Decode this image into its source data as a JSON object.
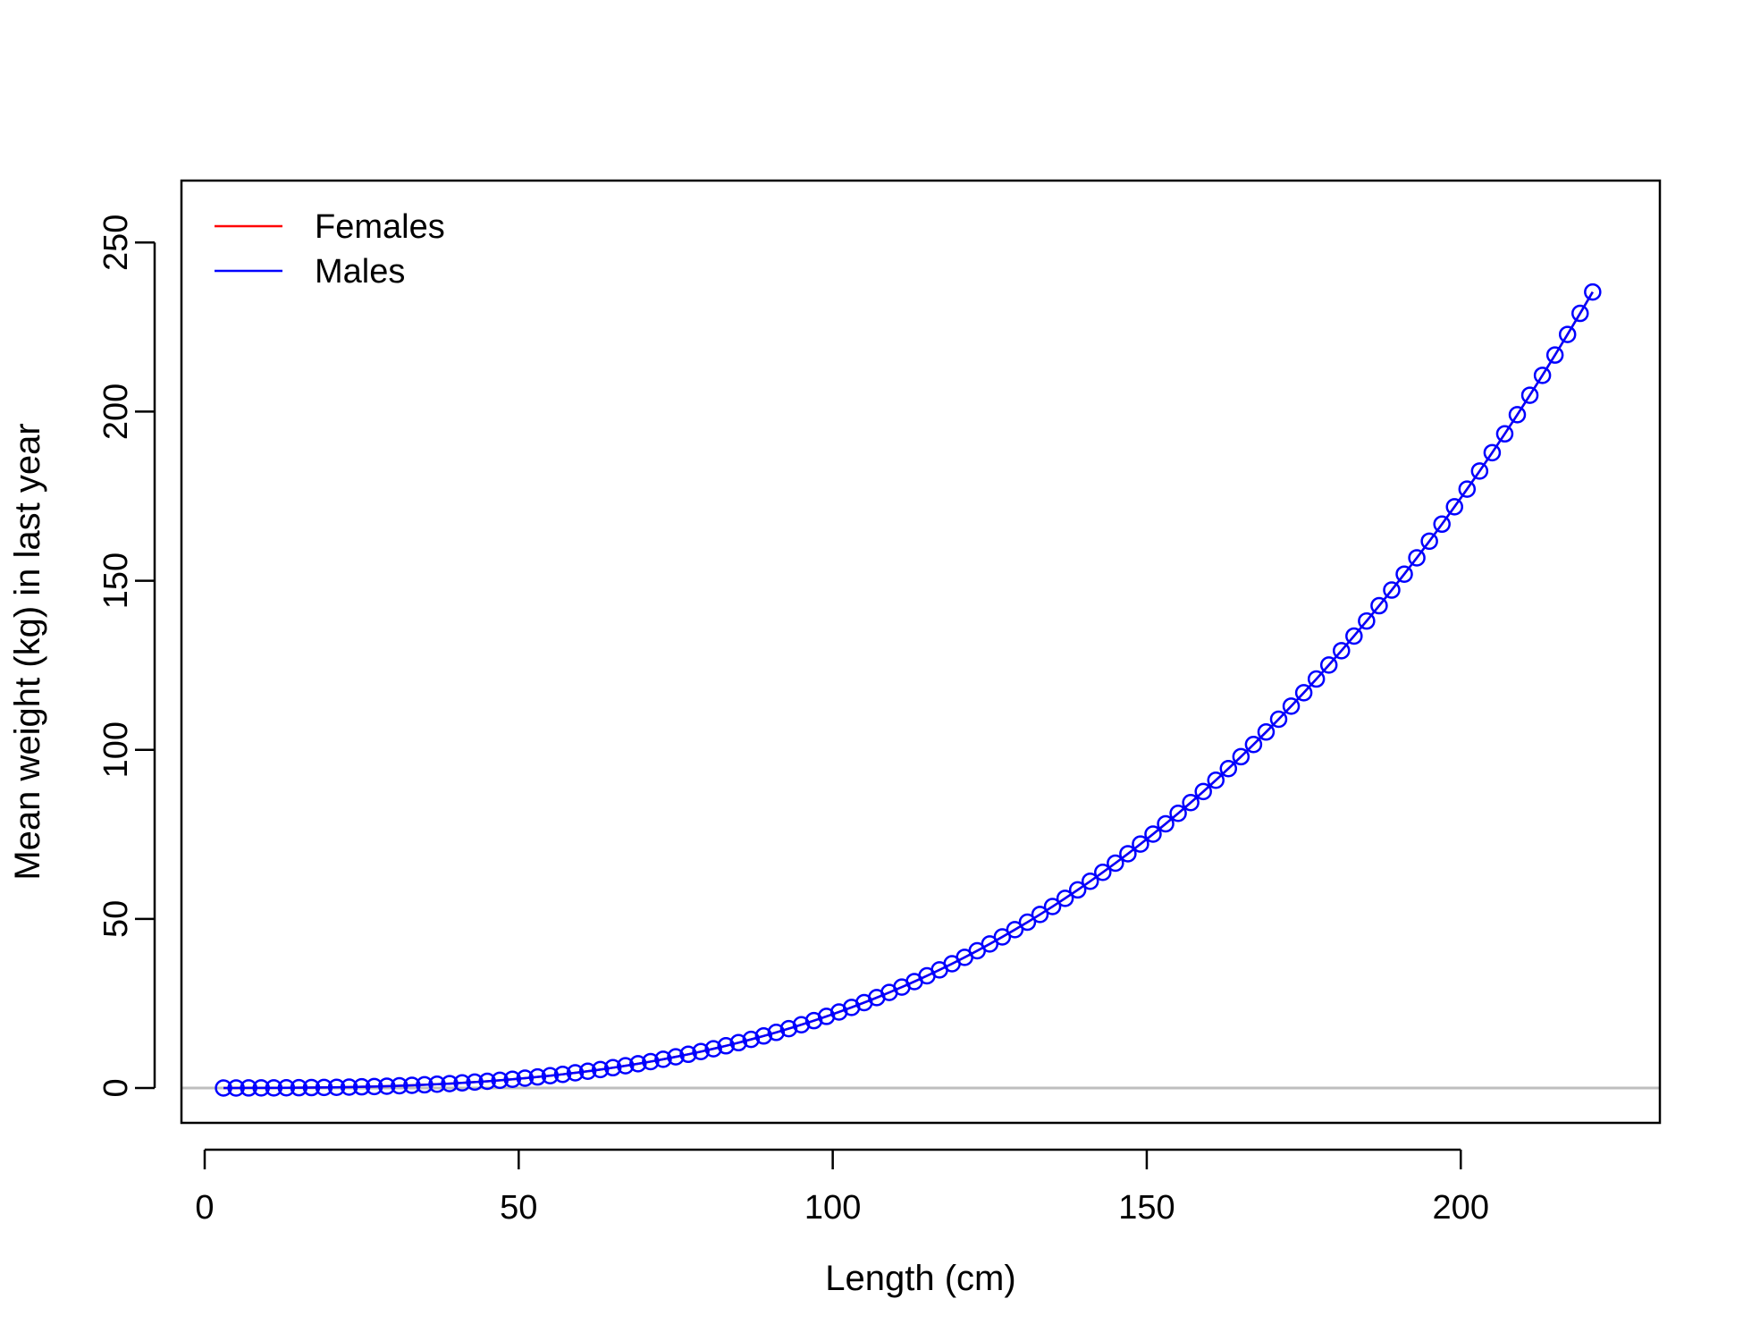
{
  "chart_data": {
    "type": "line",
    "title": "",
    "xlabel": "Length (cm)",
    "ylabel": "Mean weight (kg) in last year",
    "xlim": [
      -3.7,
      231.7
    ],
    "ylim": [
      -10.32,
      268.32
    ],
    "xticks": [
      0,
      50,
      100,
      150,
      200
    ],
    "yticks": [
      0,
      50,
      100,
      150,
      200,
      250
    ],
    "reference_line_y": 0,
    "legend_position": "top-left",
    "grid": false,
    "series": [
      {
        "name": "Females",
        "color": "#ff0000",
        "markers": false,
        "x_start": 3,
        "x_step": 2,
        "count": 110,
        "weight_at_220cm": 232.2,
        "exponent": 3
      },
      {
        "name": "Males",
        "color": "#0000ff",
        "markers": "open-circle",
        "x_start": 3,
        "x_step": 2,
        "count": 110,
        "weight_at_220cm": 232.2,
        "exponent": 3
      }
    ]
  }
}
